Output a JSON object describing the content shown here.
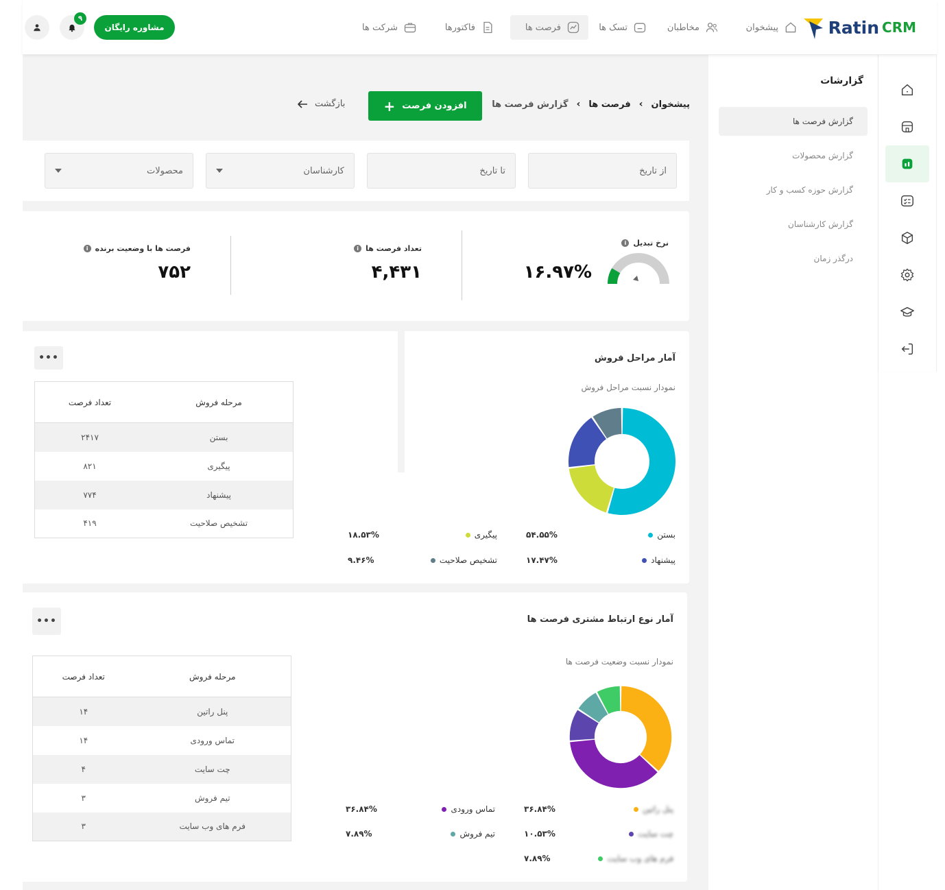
{
  "topbar": {
    "logo_text": "Ratin",
    "logo_sub": "CRM",
    "nav": [
      {
        "label": "پیشخوان",
        "icon": "home-icon"
      },
      {
        "label": "مخاطبان",
        "icon": "users-icon"
      },
      {
        "label": "تسک ها",
        "icon": "task-icon"
      },
      {
        "label": "فرصت ها",
        "icon": "chart-line-icon",
        "active": true
      },
      {
        "label": "فاکتورها",
        "icon": "invoice-icon"
      },
      {
        "label": "شرکت ها",
        "icon": "briefcase-icon"
      }
    ],
    "consult_button": "مشاوره رایگان",
    "notification_count": "۹"
  },
  "sidebar": {
    "title": "گزارشات",
    "items": [
      {
        "label": "گزارش فرصت ها",
        "active": true
      },
      {
        "label": "گزارش محصولات"
      },
      {
        "label": "گزارش حوزه کسب و کار"
      },
      {
        "label": "گزارش کارشناسان"
      },
      {
        "label": "درگذر زمان"
      }
    ],
    "rail_icons": [
      "home-icon",
      "store-icon",
      "reports-icon",
      "checklist-icon",
      "box-icon",
      "gear-icon",
      "education-icon",
      "logout-icon"
    ]
  },
  "breadcrumb": [
    "پیشخوان",
    "فرصت ها",
    "گزارش فرصت ها"
  ],
  "add_button": "افزودن فرصت",
  "back_link": "بازگشت",
  "filters": {
    "from_date": "از تاریخ",
    "to_date": "تا تاریخ",
    "experts": "کارشناسان",
    "products": "محصولات"
  },
  "stats": {
    "conversion_label": "نرخ تبدیل",
    "conversion_value": "۱۶.۹۷%",
    "conversion_fraction": 0.1697,
    "count_label": "تعداد فرصت ها",
    "count_value": "۴,۴۳۱",
    "winning_label": "فرصت ها با وضعیت برنده",
    "winning_value": "۷۵۲"
  },
  "stage_card": {
    "title": "آمار مراحل فروش",
    "subtitle": "نمودار نسبت مراحل فروش",
    "more": "•••",
    "table_headers": [
      "مرحله فروش",
      "تعداد فرصت"
    ],
    "rows": [
      [
        "بستن",
        "۲۴۱۷"
      ],
      [
        "پیگیری",
        "۸۲۱"
      ],
      [
        "پیشنهاد",
        "۷۷۴"
      ],
      [
        "تشخیص صلاحیت",
        "۴۱۹"
      ]
    ],
    "legend": [
      {
        "label": "بستن",
        "pct": "۵۴.۵۵%"
      },
      {
        "label": "پیگیری",
        "pct": "۱۸.۵۳%"
      },
      {
        "label": "پیشنهاد",
        "pct": "۱۷.۴۷%"
      },
      {
        "label": "تشخیص صلاحیت",
        "pct": "۹.۴۶%"
      }
    ]
  },
  "relation_card": {
    "title": "آمار نوع ارتباط مشتری فرصت ها",
    "subtitle": "نمودار نسبت وضعیت فرصت ها",
    "more": "•••",
    "table_headers": [
      "مرحله فروش",
      "تعداد فرصت"
    ],
    "rows": [
      [
        "پنل راتین",
        "۱۴"
      ],
      [
        "تماس ورودی",
        "۱۴"
      ],
      [
        "چت سایت",
        "۴"
      ],
      [
        "تیم فروش",
        "۳"
      ],
      [
        "فرم های وب سایت",
        "۳"
      ]
    ],
    "legend": [
      {
        "label": "پنل راتین",
        "pct": "۳۶.۸۴%"
      },
      {
        "label": "تماس ورودی",
        "pct": "۳۶.۸۴%"
      },
      {
        "label": "چت سایت",
        "pct": "۱۰.۵۳%"
      },
      {
        "label": "تیم فروش",
        "pct": "۷.۸۹%"
      },
      {
        "label": "فرم های وب سایت",
        "pct": "۷.۸۹%"
      }
    ]
  },
  "chart_data": [
    {
      "type": "pie",
      "categories": [
        "بستن",
        "پیگیری",
        "پیشنهاد",
        "تشخیص صلاحیت"
      ],
      "values": [
        54.55,
        18.53,
        17.47,
        9.46
      ],
      "colors": [
        "#00bcd4",
        "#cddc39",
        "#3f51b5",
        "#607d8b"
      ],
      "title": "آمار مراحل فروش",
      "subtitle": "نمودار نسبت مراحل فروش"
    },
    {
      "type": "pie",
      "categories": [
        "پنل راتین",
        "تماس ورودی",
        "چت سایت",
        "تیم فروش",
        "فرم های وب سایت"
      ],
      "values": [
        36.84,
        36.84,
        10.53,
        7.89,
        7.89
      ],
      "colors": [
        "#fbb013",
        "#8020b0",
        "#5c46ad",
        "#5ea9a6",
        "#3fcc67"
      ],
      "title": "آمار نوع ارتباط مشتری فرصت ها",
      "subtitle": "نمودار نسبت وضعیت فرصت ها"
    }
  ]
}
